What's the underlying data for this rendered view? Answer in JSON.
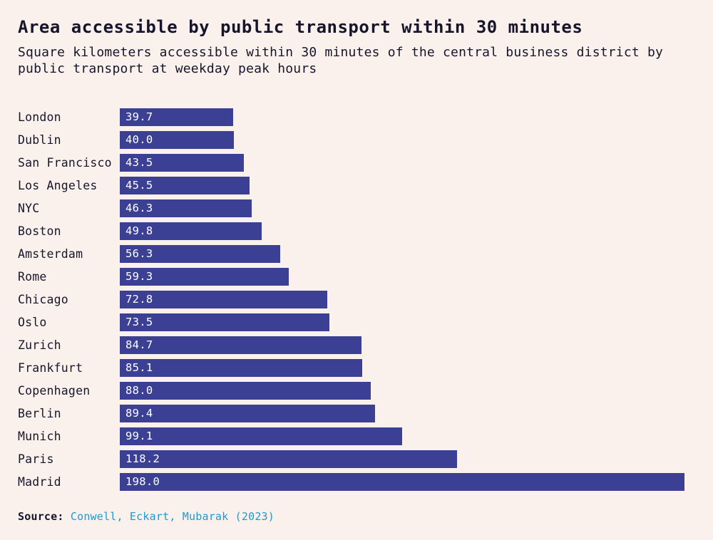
{
  "page": {
    "title": "Area accessible by public transport within 30 minutes",
    "subtitle": "Square kilometers accessible within 30 minutes of the central business district by public transport at weekday peak hours",
    "source_label": "Source:",
    "source_link": "Conwell, Eckart, Mubarak (2023)"
  },
  "chart_data": {
    "type": "bar",
    "orientation": "horizontal",
    "title": "Area accessible by public transport within 30 minutes",
    "subtitle": "Square kilometers accessible within 30 minutes of the central business district by public transport at weekday peak hours",
    "xlabel": "",
    "ylabel": "",
    "xlim": [
      0,
      198
    ],
    "grid": false,
    "legend": false,
    "bar_color": "#3b4095",
    "background_color": "#fbf1ec",
    "categories": [
      "London",
      "Dublin",
      "San Francisco",
      "Los Angeles",
      "NYC",
      "Boston",
      "Amsterdam",
      "Rome",
      "Chicago",
      "Oslo",
      "Zurich",
      "Frankfurt",
      "Copenhagen",
      "Berlin",
      "Munich",
      "Paris",
      "Madrid"
    ],
    "values": [
      39.7,
      40.0,
      43.5,
      45.5,
      46.3,
      49.8,
      56.3,
      59.3,
      72.8,
      73.5,
      84.7,
      85.1,
      88.0,
      89.4,
      99.1,
      118.2,
      198.0
    ],
    "value_labels": [
      "39.7",
      "40.0",
      "43.5",
      "45.5",
      "46.3",
      "49.8",
      "56.3",
      "59.3",
      "72.8",
      "73.5",
      "84.7",
      "85.1",
      "88.0",
      "89.4",
      "99.1",
      "118.2",
      "198.0"
    ],
    "source": "Conwell, Eckart, Mubarak (2023)"
  }
}
